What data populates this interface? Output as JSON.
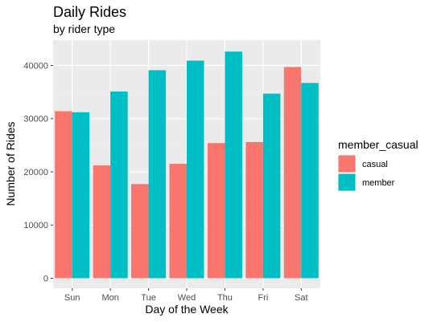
{
  "chart_data": {
    "type": "bar",
    "title": "Daily Rides",
    "subtitle": "by rider type",
    "xlabel": "Day of the Week",
    "ylabel": "Number of Rides",
    "categories": [
      "Sun",
      "Mon",
      "Tue",
      "Wed",
      "Thu",
      "Fri",
      "Sat"
    ],
    "ylim": [
      0,
      46000
    ],
    "yticks": [
      0,
      10000,
      20000,
      30000,
      40000
    ],
    "ytick_labels": [
      "0",
      "10000",
      "20000",
      "30000",
      "40000"
    ],
    "grid": true,
    "legend": {
      "title": "member_casual",
      "placement": "right"
    },
    "series": [
      {
        "name": "casual",
        "color": "#F8766D",
        "values": [
          31400,
          21200,
          17700,
          21500,
          25400,
          25600,
          39700
        ]
      },
      {
        "name": "member",
        "color": "#00BFC4",
        "values": [
          31200,
          35100,
          39100,
          40900,
          42600,
          34700,
          36700
        ]
      }
    ]
  }
}
